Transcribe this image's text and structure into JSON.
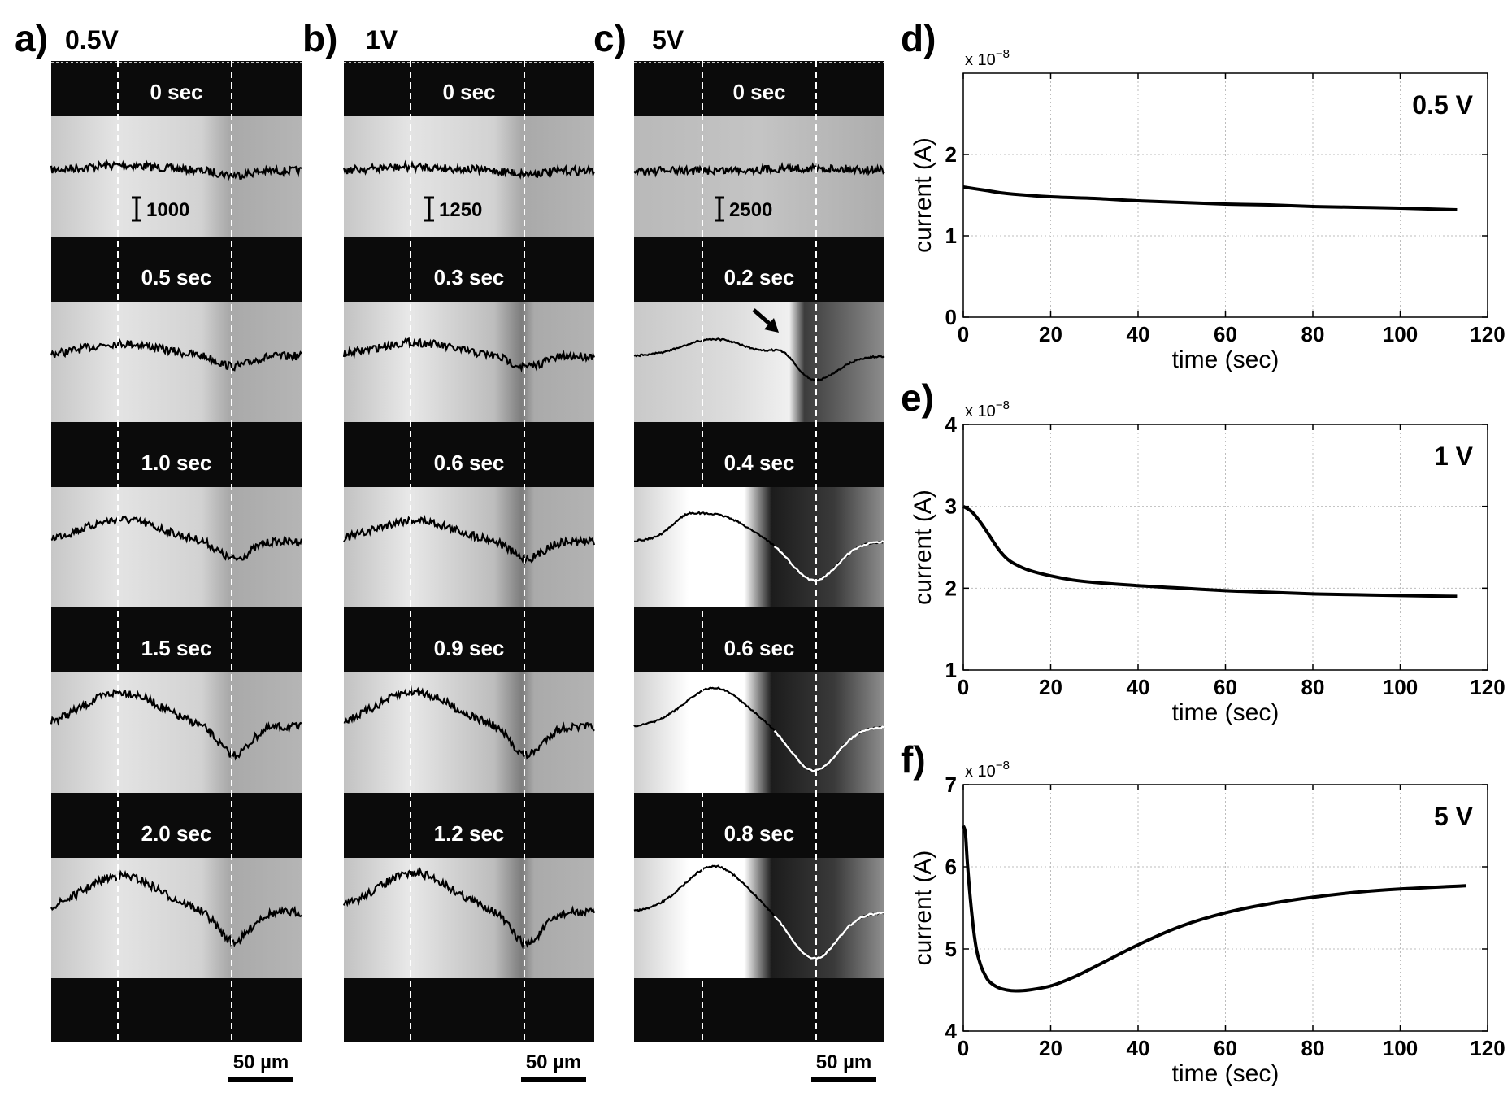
{
  "figure": {
    "image_panels": [
      {
        "letter": "a)",
        "voltage": "0.5V",
        "frames": [
          "0 sec",
          "0.5 sec",
          "1.0 sec",
          "1.5 sec",
          "2.0 sec"
        ],
        "intensity_scale": "1000",
        "scale_bar": "50 µm"
      },
      {
        "letter": "b)",
        "voltage": "1V",
        "frames": [
          "0 sec",
          "0.3 sec",
          "0.6 sec",
          "0.9 sec",
          "1.2 sec"
        ],
        "intensity_scale": "1250",
        "scale_bar": "50 µm"
      },
      {
        "letter": "c)",
        "voltage": "5V",
        "frames": [
          "0 sec",
          "0.2 sec",
          "0.4 sec",
          "0.6 sec",
          "0.8 sec"
        ],
        "intensity_scale": "2500",
        "scale_bar": "50 µm"
      }
    ]
  },
  "chart_data": [
    {
      "type": "line",
      "panel": "d)",
      "annotation": "0.5 V",
      "xlabel": "time (sec)",
      "ylabel": "current (A)",
      "exponent": "x 10",
      "exponent_power": "−8",
      "xlim": [
        0,
        120
      ],
      "ylim": [
        0,
        3
      ],
      "xticks": [
        0,
        20,
        40,
        60,
        80,
        100,
        120
      ],
      "yticks": [
        0,
        1,
        2
      ],
      "grid": true,
      "series": [
        {
          "name": "0.5 V",
          "x": [
            0,
            5,
            10,
            20,
            30,
            40,
            50,
            60,
            70,
            80,
            90,
            100,
            113
          ],
          "y": [
            1.6,
            1.56,
            1.52,
            1.48,
            1.46,
            1.43,
            1.41,
            1.39,
            1.38,
            1.36,
            1.35,
            1.34,
            1.32
          ]
        }
      ]
    },
    {
      "type": "line",
      "panel": "e)",
      "annotation": "1 V",
      "xlabel": "time (sec)",
      "ylabel": "current (A)",
      "exponent": "x 10",
      "exponent_power": "−8",
      "xlim": [
        0,
        120
      ],
      "ylim": [
        1,
        4
      ],
      "xticks": [
        0,
        20,
        40,
        60,
        80,
        100,
        120
      ],
      "yticks": [
        1,
        2,
        3,
        4
      ],
      "grid": true,
      "series": [
        {
          "name": "1 V",
          "x": [
            0,
            2,
            4,
            6,
            8,
            10,
            12,
            15,
            20,
            25,
            30,
            40,
            50,
            60,
            70,
            80,
            90,
            100,
            113
          ],
          "y": [
            3.0,
            2.93,
            2.8,
            2.64,
            2.48,
            2.36,
            2.29,
            2.22,
            2.15,
            2.1,
            2.07,
            2.03,
            2.0,
            1.97,
            1.95,
            1.93,
            1.92,
            1.91,
            1.9
          ]
        }
      ]
    },
    {
      "type": "line",
      "panel": "f)",
      "annotation": "5 V",
      "xlabel": "time (sec)",
      "ylabel": "current (A)",
      "exponent": "x 10",
      "exponent_power": "−8",
      "xlim": [
        0,
        120
      ],
      "ylim": [
        4,
        7
      ],
      "xticks": [
        0,
        20,
        40,
        60,
        80,
        100,
        120
      ],
      "yticks": [
        4,
        5,
        6,
        7
      ],
      "grid": true,
      "series": [
        {
          "name": "5 V",
          "x": [
            0,
            0.5,
            1,
            2,
            3,
            4,
            5,
            6,
            8,
            10,
            12,
            15,
            20,
            25,
            30,
            40,
            50,
            60,
            70,
            80,
            90,
            100,
            115
          ],
          "y": [
            6.5,
            6.4,
            6.0,
            5.4,
            5.0,
            4.8,
            4.68,
            4.6,
            4.53,
            4.5,
            4.49,
            4.5,
            4.55,
            4.65,
            4.78,
            5.05,
            5.28,
            5.44,
            5.55,
            5.63,
            5.69,
            5.73,
            5.77
          ]
        }
      ]
    }
  ]
}
